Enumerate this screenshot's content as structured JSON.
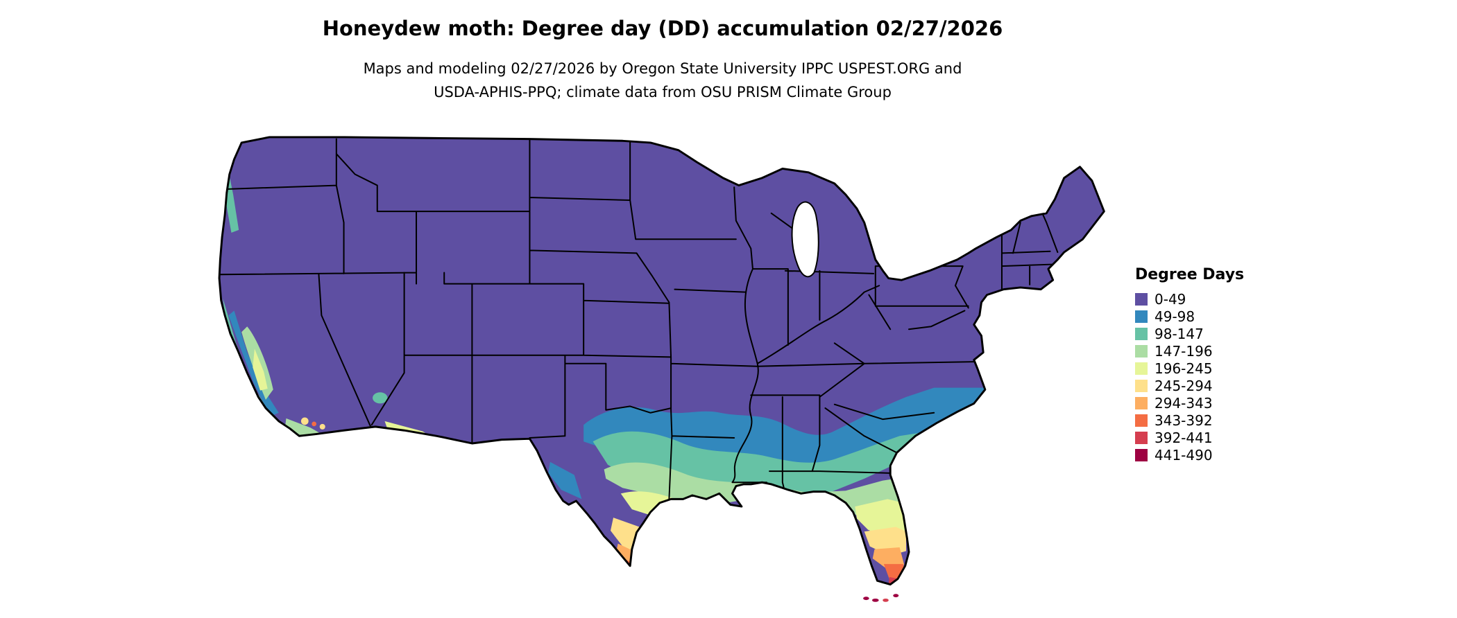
{
  "header": {
    "title": "Honeydew moth: Degree day (DD) accumulation 02/27/2026",
    "subtitle_line1": "Maps and modeling 02/27/2026 by Oregon State University IPPC USPEST.ORG and",
    "subtitle_line2": "USDA-APHIS-PPQ; climate data from OSU PRISM Climate Group"
  },
  "legend": {
    "title": "Degree Days",
    "items": [
      {
        "label": "0-49",
        "color": "#5e4fa2"
      },
      {
        "label": "49-98",
        "color": "#3288bd"
      },
      {
        "label": "98-147",
        "color": "#66c2a5"
      },
      {
        "label": "147-196",
        "color": "#abdda4"
      },
      {
        "label": "196-245",
        "color": "#e6f598"
      },
      {
        "label": "245-294",
        "color": "#fee08b"
      },
      {
        "label": "294-343",
        "color": "#fdae61"
      },
      {
        "label": "343-392",
        "color": "#f46d43"
      },
      {
        "label": "392-441",
        "color": "#d53e4f"
      },
      {
        "label": "441-490",
        "color": "#9e0142"
      }
    ]
  },
  "map": {
    "name": "Continental United States degree-day accumulation raster map",
    "background": "#ffffff",
    "border_color": "#000000"
  }
}
